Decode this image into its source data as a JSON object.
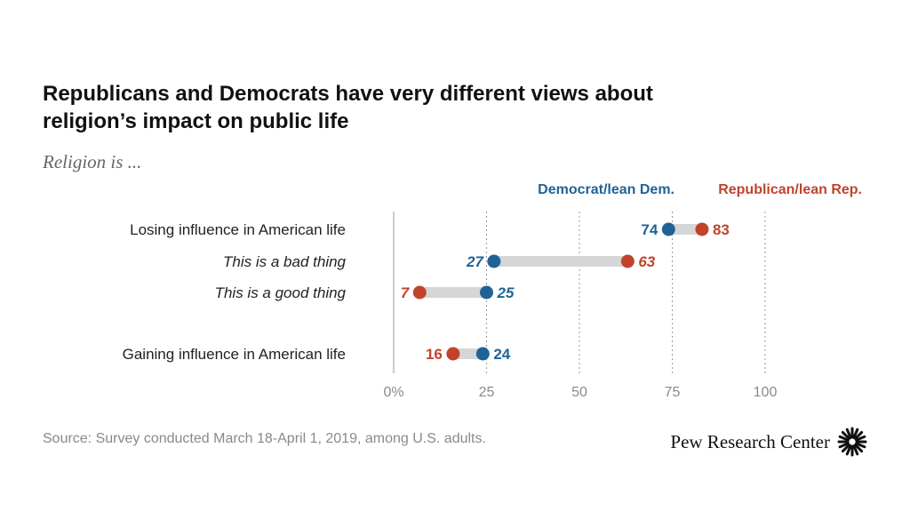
{
  "title": "Republicans and Democrats have very different views about religion’s impact on public life",
  "subtitle": "Religion is ...",
  "source": "Source: Survey conducted March 18-April 1, 2019, among U.S. adults.",
  "brand": "Pew Research Center",
  "colors": {
    "dem": "#1f6396",
    "rep": "#c1432c",
    "connector": "#d6d6d6",
    "axis": "#999999",
    "tick": "#8a8a8a",
    "label": "#222222"
  },
  "chart_data": {
    "type": "dot",
    "xlim": [
      0,
      100
    ],
    "ticks": [
      {
        "value": 0,
        "label": "0%"
      },
      {
        "value": 25,
        "label": "25"
      },
      {
        "value": 50,
        "label": "50"
      },
      {
        "value": 75,
        "label": "75"
      },
      {
        "value": 100,
        "label": "100"
      }
    ],
    "legend": [
      {
        "name": "Democrat/lean Dem.",
        "key": "dem"
      },
      {
        "name": "Republican/lean Rep.",
        "key": "rep"
      }
    ],
    "rows": [
      {
        "label": "Losing influence in American life",
        "italic": false,
        "dem": 74,
        "rep": 83
      },
      {
        "label": "This is a bad thing",
        "italic": true,
        "dem": 27,
        "rep": 63
      },
      {
        "label": "This is a good thing",
        "italic": true,
        "dem": 25,
        "rep": 7
      },
      {
        "label": "Gaining influence in American life",
        "italic": false,
        "dem": 24,
        "rep": 16
      }
    ]
  }
}
